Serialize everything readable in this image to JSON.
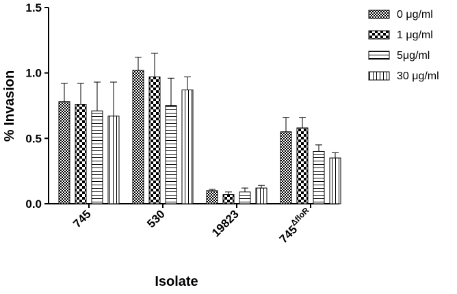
{
  "chart_data": {
    "type": "bar",
    "xlabel": "Isolate",
    "ylabel": "% Invasion",
    "ylim": [
      0,
      1.5
    ],
    "yticks": [
      "0.0",
      "0.5",
      "1.0",
      "1.5"
    ],
    "categories": [
      {
        "label": "745",
        "sup": ""
      },
      {
        "label": "530",
        "sup": ""
      },
      {
        "label": "19823",
        "sup": ""
      },
      {
        "label": "745",
        "sup": "ΔfloR"
      }
    ],
    "series": [
      {
        "name": "0 μg/ml",
        "pattern": "checker-fine",
        "values": [
          0.78,
          1.02,
          0.1,
          0.55
        ],
        "errors": [
          0.14,
          0.1,
          0.01,
          0.11
        ]
      },
      {
        "name": "1 μg/ml",
        "pattern": "checker-coarse",
        "values": [
          0.76,
          0.97,
          0.07,
          0.58
        ],
        "errors": [
          0.16,
          0.18,
          0.02,
          0.08
        ]
      },
      {
        "name": "5μg/ml",
        "pattern": "horizontal-lines",
        "values": [
          0.71,
          0.75,
          0.09,
          0.4
        ],
        "errors": [
          0.22,
          0.21,
          0.03,
          0.05
        ]
      },
      {
        "name": "30 μg/ml",
        "pattern": "vertical-lines",
        "values": [
          0.67,
          0.87,
          0.12,
          0.35
        ],
        "errors": [
          0.26,
          0.1,
          0.02,
          0.04
        ]
      }
    ],
    "legend_position": "top-right",
    "grid": false
  }
}
